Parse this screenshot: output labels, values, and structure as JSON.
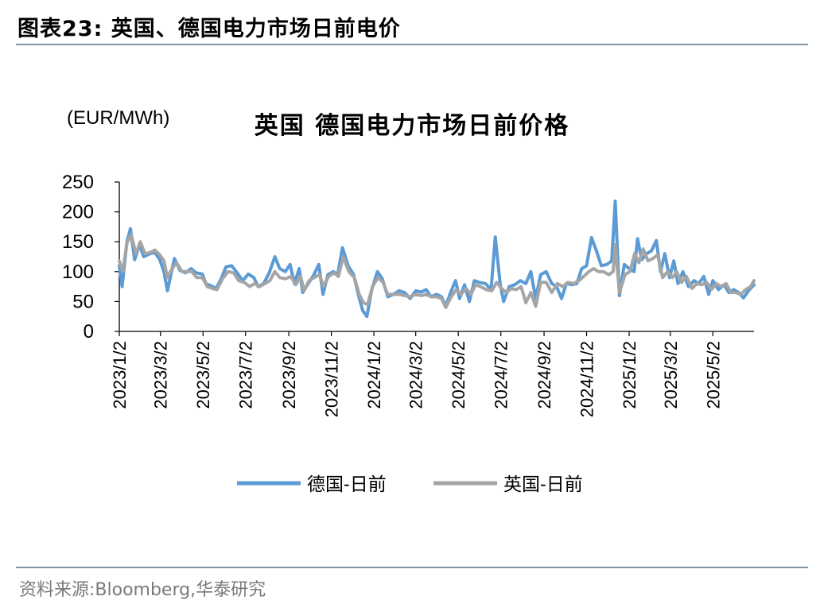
{
  "header": {
    "title": "图表23:   英国、德国电力市场日前电价"
  },
  "footer": {
    "source": "资料来源:Bloomberg,华泰研究"
  },
  "colors": {
    "germany": "#5b9bd5",
    "uk": "#a5a5a5",
    "rule": "#7f95a8"
  },
  "chart_data": {
    "type": "line",
    "title": "英国 德国电力市场日前价格",
    "ylabel": "(EUR/MWh)",
    "xlabel": "",
    "ylim": [
      0,
      250
    ],
    "yticks": [
      0,
      50,
      100,
      150,
      200,
      250
    ],
    "xlim": [
      "2023-01-02",
      "2025-06-30"
    ],
    "x_tick_labels": [
      "2023/1/2",
      "2023/3/2",
      "2023/5/2",
      "2023/7/2",
      "2023/9/2",
      "2023/11/2",
      "2024/1/2",
      "2024/3/2",
      "2024/5/2",
      "2024/7/2",
      "2024/9/2",
      "2024/11/2",
      "2025/1/2",
      "2025/3/2",
      "2025/5/2"
    ],
    "x_tick_dates": [
      "2023-01-02",
      "2023-03-02",
      "2023-05-02",
      "2023-07-02",
      "2023-09-02",
      "2023-11-02",
      "2024-01-02",
      "2024-03-02",
      "2024-05-02",
      "2024-07-02",
      "2024-09-02",
      "2024-11-02",
      "2025-01-02",
      "2025-03-02",
      "2025-05-02"
    ],
    "grid": false,
    "legend_position": "bottom",
    "series": [
      {
        "name": "德国-日前",
        "color": "#5b9bd5",
        "points": [
          [
            "2023-01-02",
            110
          ],
          [
            "2023-01-06",
            75
          ],
          [
            "2023-01-13",
            150
          ],
          [
            "2023-01-18",
            172
          ],
          [
            "2023-01-24",
            120
          ],
          [
            "2023-01-31",
            145
          ],
          [
            "2023-02-06",
            125
          ],
          [
            "2023-02-15",
            130
          ],
          [
            "2023-02-22",
            132
          ],
          [
            "2023-03-01",
            120
          ],
          [
            "2023-03-07",
            100
          ],
          [
            "2023-03-12",
            68
          ],
          [
            "2023-03-17",
            95
          ],
          [
            "2023-03-22",
            122
          ],
          [
            "2023-03-30",
            102
          ],
          [
            "2023-04-07",
            98
          ],
          [
            "2023-04-15",
            105
          ],
          [
            "2023-04-22",
            98
          ],
          [
            "2023-05-01",
            96
          ],
          [
            "2023-05-06",
            80
          ],
          [
            "2023-05-14",
            76
          ],
          [
            "2023-05-21",
            72
          ],
          [
            "2023-05-28",
            88
          ],
          [
            "2023-06-04",
            108
          ],
          [
            "2023-06-12",
            110
          ],
          [
            "2023-06-20",
            98
          ],
          [
            "2023-06-28",
            85
          ],
          [
            "2023-07-06",
            96
          ],
          [
            "2023-07-14",
            90
          ],
          [
            "2023-07-20",
            75
          ],
          [
            "2023-07-28",
            80
          ],
          [
            "2023-08-05",
            98
          ],
          [
            "2023-08-13",
            125
          ],
          [
            "2023-08-20",
            105
          ],
          [
            "2023-08-28",
            100
          ],
          [
            "2023-09-04",
            112
          ],
          [
            "2023-09-10",
            80
          ],
          [
            "2023-09-17",
            105
          ],
          [
            "2023-09-22",
            65
          ],
          [
            "2023-09-30",
            80
          ],
          [
            "2023-10-08",
            95
          ],
          [
            "2023-10-15",
            112
          ],
          [
            "2023-10-21",
            62
          ],
          [
            "2023-10-28",
            95
          ],
          [
            "2023-11-05",
            100
          ],
          [
            "2023-11-11",
            95
          ],
          [
            "2023-11-18",
            140
          ],
          [
            "2023-11-26",
            110
          ],
          [
            "2023-12-04",
            95
          ],
          [
            "2023-12-11",
            60
          ],
          [
            "2023-12-17",
            35
          ],
          [
            "2023-12-23",
            25
          ],
          [
            "2023-12-30",
            70
          ],
          [
            "2024-01-07",
            100
          ],
          [
            "2024-01-14",
            88
          ],
          [
            "2024-01-22",
            58
          ],
          [
            "2024-01-30",
            62
          ],
          [
            "2024-02-07",
            68
          ],
          [
            "2024-02-15",
            65
          ],
          [
            "2024-02-23",
            55
          ],
          [
            "2024-03-02",
            68
          ],
          [
            "2024-03-10",
            66
          ],
          [
            "2024-03-17",
            70
          ],
          [
            "2024-03-24",
            58
          ],
          [
            "2024-04-01",
            62
          ],
          [
            "2024-04-08",
            58
          ],
          [
            "2024-04-14",
            42
          ],
          [
            "2024-04-21",
            65
          ],
          [
            "2024-04-28",
            85
          ],
          [
            "2024-05-04",
            55
          ],
          [
            "2024-05-11",
            78
          ],
          [
            "2024-05-18",
            50
          ],
          [
            "2024-05-25",
            85
          ],
          [
            "2024-06-01",
            82
          ],
          [
            "2024-06-10",
            80
          ],
          [
            "2024-06-18",
            70
          ],
          [
            "2024-06-24",
            158
          ],
          [
            "2024-07-01",
            80
          ],
          [
            "2024-07-06",
            50
          ],
          [
            "2024-07-14",
            75
          ],
          [
            "2024-07-22",
            78
          ],
          [
            "2024-07-30",
            85
          ],
          [
            "2024-08-07",
            80
          ],
          [
            "2024-08-14",
            100
          ],
          [
            "2024-08-21",
            55
          ],
          [
            "2024-08-28",
            95
          ],
          [
            "2024-09-05",
            100
          ],
          [
            "2024-09-13",
            80
          ],
          [
            "2024-09-20",
            75
          ],
          [
            "2024-09-27",
            55
          ],
          [
            "2024-10-04",
            80
          ],
          [
            "2024-10-12",
            78
          ],
          [
            "2024-10-19",
            80
          ],
          [
            "2024-10-26",
            105
          ],
          [
            "2024-11-02",
            110
          ],
          [
            "2024-11-09",
            157
          ],
          [
            "2024-11-16",
            135
          ],
          [
            "2024-11-23",
            110
          ],
          [
            "2024-12-01",
            112
          ],
          [
            "2024-12-08",
            118
          ],
          [
            "2024-12-13",
            218
          ],
          [
            "2024-12-19",
            60
          ],
          [
            "2024-12-26",
            112
          ],
          [
            "2025-01-02",
            105
          ],
          [
            "2025-01-09",
            100
          ],
          [
            "2025-01-14",
            155
          ],
          [
            "2025-01-20",
            120
          ],
          [
            "2025-01-27",
            130
          ],
          [
            "2025-02-03",
            135
          ],
          [
            "2025-02-10",
            152
          ],
          [
            "2025-02-16",
            100
          ],
          [
            "2025-02-22",
            130
          ],
          [
            "2025-03-01",
            90
          ],
          [
            "2025-03-07",
            118
          ],
          [
            "2025-03-13",
            80
          ],
          [
            "2025-03-20",
            100
          ],
          [
            "2025-03-28",
            75
          ],
          [
            "2025-04-05",
            85
          ],
          [
            "2025-04-12",
            80
          ],
          [
            "2025-04-19",
            92
          ],
          [
            "2025-04-26",
            62
          ],
          [
            "2025-05-02",
            85
          ],
          [
            "2025-05-10",
            70
          ],
          [
            "2025-05-18",
            78
          ],
          [
            "2025-05-25",
            65
          ],
          [
            "2025-06-01",
            70
          ],
          [
            "2025-06-08",
            65
          ],
          [
            "2025-06-15",
            56
          ],
          [
            "2025-06-22",
            68
          ],
          [
            "2025-06-30",
            78
          ]
        ]
      },
      {
        "name": "英国-日前",
        "color": "#a5a5a5",
        "points": [
          [
            "2023-01-02",
            118
          ],
          [
            "2023-01-07",
            100
          ],
          [
            "2023-01-13",
            148
          ],
          [
            "2023-01-19",
            162
          ],
          [
            "2023-01-26",
            130
          ],
          [
            "2023-02-01",
            150
          ],
          [
            "2023-02-08",
            130
          ],
          [
            "2023-02-15",
            132
          ],
          [
            "2023-02-22",
            136
          ],
          [
            "2023-03-01",
            128
          ],
          [
            "2023-03-07",
            118
          ],
          [
            "2023-03-12",
            90
          ],
          [
            "2023-03-18",
            104
          ],
          [
            "2023-03-25",
            115
          ],
          [
            "2023-04-02",
            100
          ],
          [
            "2023-04-09",
            100
          ],
          [
            "2023-04-16",
            100
          ],
          [
            "2023-04-23",
            90
          ],
          [
            "2023-05-01",
            90
          ],
          [
            "2023-05-08",
            75
          ],
          [
            "2023-05-15",
            72
          ],
          [
            "2023-05-22",
            70
          ],
          [
            "2023-05-30",
            88
          ],
          [
            "2023-06-07",
            100
          ],
          [
            "2023-06-15",
            98
          ],
          [
            "2023-06-22",
            85
          ],
          [
            "2023-06-30",
            82
          ],
          [
            "2023-07-08",
            75
          ],
          [
            "2023-07-15",
            80
          ],
          [
            "2023-07-22",
            75
          ],
          [
            "2023-07-30",
            80
          ],
          [
            "2023-08-06",
            85
          ],
          [
            "2023-08-13",
            100
          ],
          [
            "2023-08-20",
            90
          ],
          [
            "2023-08-28",
            88
          ],
          [
            "2023-09-05",
            92
          ],
          [
            "2023-09-12",
            78
          ],
          [
            "2023-09-19",
            92
          ],
          [
            "2023-09-24",
            68
          ],
          [
            "2023-10-01",
            85
          ],
          [
            "2023-10-08",
            90
          ],
          [
            "2023-10-16",
            95
          ],
          [
            "2023-10-22",
            75
          ],
          [
            "2023-10-29",
            92
          ],
          [
            "2023-11-06",
            98
          ],
          [
            "2023-11-12",
            92
          ],
          [
            "2023-11-19",
            125
          ],
          [
            "2023-11-27",
            100
          ],
          [
            "2023-12-05",
            90
          ],
          [
            "2023-12-12",
            62
          ],
          [
            "2023-12-18",
            48
          ],
          [
            "2023-12-24",
            45
          ],
          [
            "2023-12-31",
            75
          ],
          [
            "2024-01-08",
            90
          ],
          [
            "2024-01-15",
            82
          ],
          [
            "2024-01-22",
            62
          ],
          [
            "2024-01-30",
            62
          ],
          [
            "2024-02-07",
            62
          ],
          [
            "2024-02-15",
            60
          ],
          [
            "2024-02-23",
            58
          ],
          [
            "2024-03-02",
            62
          ],
          [
            "2024-03-10",
            60
          ],
          [
            "2024-03-17",
            62
          ],
          [
            "2024-03-24",
            58
          ],
          [
            "2024-04-01",
            58
          ],
          [
            "2024-04-08",
            55
          ],
          [
            "2024-04-14",
            40
          ],
          [
            "2024-04-22",
            58
          ],
          [
            "2024-04-29",
            70
          ],
          [
            "2024-05-06",
            62
          ],
          [
            "2024-05-13",
            72
          ],
          [
            "2024-05-20",
            62
          ],
          [
            "2024-05-27",
            78
          ],
          [
            "2024-06-03",
            75
          ],
          [
            "2024-06-11",
            70
          ],
          [
            "2024-06-19",
            68
          ],
          [
            "2024-06-26",
            82
          ],
          [
            "2024-07-03",
            72
          ],
          [
            "2024-07-10",
            65
          ],
          [
            "2024-07-17",
            72
          ],
          [
            "2024-07-24",
            70
          ],
          [
            "2024-07-31",
            75
          ],
          [
            "2024-08-07",
            48
          ],
          [
            "2024-08-14",
            65
          ],
          [
            "2024-08-21",
            42
          ],
          [
            "2024-08-28",
            82
          ],
          [
            "2024-09-05",
            82
          ],
          [
            "2024-09-13",
            65
          ],
          [
            "2024-09-21",
            80
          ],
          [
            "2024-09-29",
            75
          ],
          [
            "2024-10-06",
            82
          ],
          [
            "2024-10-14",
            80
          ],
          [
            "2024-10-22",
            85
          ],
          [
            "2024-10-29",
            92
          ],
          [
            "2024-11-05",
            100
          ],
          [
            "2024-11-12",
            105
          ],
          [
            "2024-11-19",
            100
          ],
          [
            "2024-11-26",
            100
          ],
          [
            "2024-12-04",
            95
          ],
          [
            "2024-12-10",
            100
          ],
          [
            "2024-12-13",
            145
          ],
          [
            "2024-12-19",
            65
          ],
          [
            "2024-12-27",
            95
          ],
          [
            "2025-01-03",
            100
          ],
          [
            "2025-01-10",
            130
          ],
          [
            "2025-01-16",
            115
          ],
          [
            "2025-01-22",
            138
          ],
          [
            "2025-01-29",
            118
          ],
          [
            "2025-02-05",
            122
          ],
          [
            "2025-02-12",
            128
          ],
          [
            "2025-02-19",
            90
          ],
          [
            "2025-02-26",
            100
          ],
          [
            "2025-03-05",
            90
          ],
          [
            "2025-03-11",
            100
          ],
          [
            "2025-03-18",
            82
          ],
          [
            "2025-03-25",
            92
          ],
          [
            "2025-04-02",
            72
          ],
          [
            "2025-04-09",
            80
          ],
          [
            "2025-04-16",
            78
          ],
          [
            "2025-04-23",
            82
          ],
          [
            "2025-04-30",
            70
          ],
          [
            "2025-05-07",
            80
          ],
          [
            "2025-05-14",
            75
          ],
          [
            "2025-05-21",
            80
          ],
          [
            "2025-05-28",
            65
          ],
          [
            "2025-06-04",
            65
          ],
          [
            "2025-06-11",
            62
          ],
          [
            "2025-06-18",
            70
          ],
          [
            "2025-06-25",
            75
          ],
          [
            "2025-06-30",
            85
          ]
        ]
      }
    ]
  }
}
